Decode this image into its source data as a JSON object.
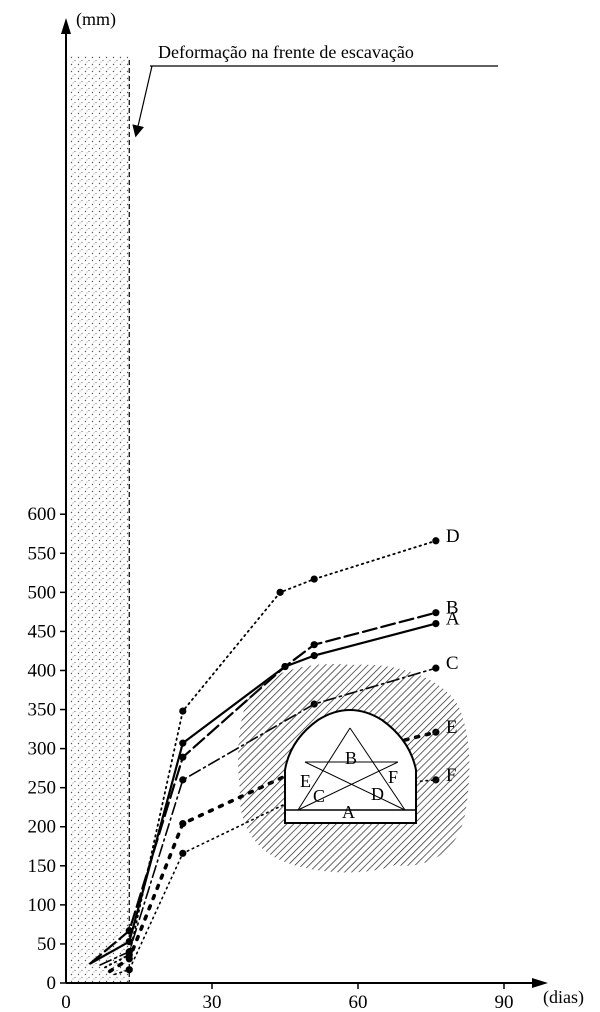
{
  "chart_data": {
    "type": "line",
    "title": "",
    "xlabel": "(dias)",
    "ylabel": "(mm)",
    "xlim": [
      0,
      90
    ],
    "ylim": [
      0,
      620
    ],
    "xticks": [
      0,
      30,
      60,
      90
    ],
    "yticks": [
      0,
      50,
      100,
      150,
      200,
      250,
      300,
      350,
      400,
      450,
      500,
      550,
      600
    ],
    "grid": false,
    "annotation": "Deformação na frente de escavação",
    "excavation_front_day": 13,
    "series": [
      {
        "name": "A",
        "x": [
          5,
          13,
          24,
          45,
          51,
          76
        ],
        "y": [
          25,
          53,
          307,
          405,
          419,
          460
        ]
      },
      {
        "name": "B",
        "x": [
          5,
          13,
          24,
          45,
          51,
          76
        ],
        "y": [
          25,
          67,
          289,
          405,
          433,
          474
        ]
      },
      {
        "name": "C",
        "x": [
          7,
          13,
          24,
          51,
          76
        ],
        "y": [
          23,
          40,
          260,
          357,
          403
        ]
      },
      {
        "name": "D",
        "x": [
          8,
          13,
          24,
          44,
          51,
          76
        ],
        "y": [
          20,
          36,
          348,
          500,
          517,
          566
        ]
      },
      {
        "name": "E",
        "x": [
          9,
          13,
          24,
          51,
          76
        ],
        "y": [
          15,
          31,
          204,
          282,
          321
        ]
      },
      {
        "name": "F",
        "x": [
          10,
          13,
          24,
          51,
          76
        ],
        "y": [
          11,
          17,
          166,
          247,
          260
        ]
      }
    ],
    "diagram_labels": [
      "A",
      "B",
      "C",
      "D",
      "E",
      "F"
    ]
  }
}
